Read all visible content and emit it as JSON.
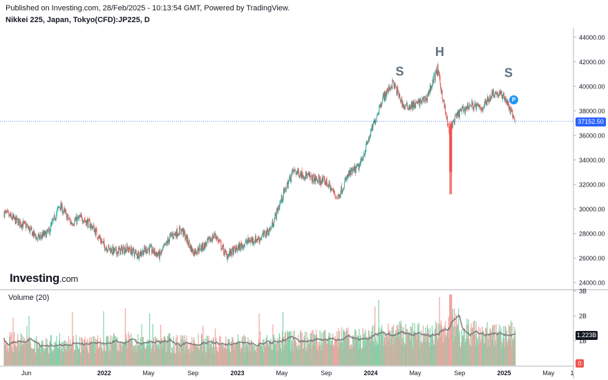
{
  "header": {
    "published": "Published on Investing.com, 28/Feb/2025 - 10:13:54 GMT, Powered by TradingView.",
    "instrument": "Nikkei 225, Japan, Tokyo(CFD):JP225, D"
  },
  "branding": {
    "logo_main": "Investing",
    "logo_suffix": ".com"
  },
  "volume_panel": {
    "title": "Volume (20)",
    "current_tag": "1.223B",
    "zero_tag": "0"
  },
  "marker": {
    "label": "P"
  },
  "colors": {
    "up": "#26a69a",
    "down": "#ef5350",
    "vol_up": "#7fd1a9",
    "vol_down": "#f2a39f",
    "price_line": "#2962ff",
    "ma_line": "#7c7c7c",
    "pattern_label": "#5d7080"
  },
  "chart_data": [
    {
      "type": "candlestick",
      "title": "Nikkei 225, Japan, Tokyo(CFD):JP225, D",
      "y_ticks": [
        "44000.00",
        "42000.00",
        "40000.00",
        "38000.00",
        "36000.00",
        "34000.00",
        "32000.00",
        "30000.00",
        "28000.00",
        "26000.00",
        "24000.00"
      ],
      "ylim": [
        23500,
        44500
      ],
      "x_ticks": [
        "Jun",
        "2022",
        "May",
        "Sep",
        "2023",
        "May",
        "Sep",
        "2024",
        "May",
        "Sep",
        "2025",
        "May",
        "1"
      ],
      "last_price": 37152.5,
      "last_price_label": "37152.50",
      "annotations": [
        {
          "text": "S",
          "date": "Mar 2024",
          "note": "left shoulder"
        },
        {
          "text": "H",
          "date": "Jul 2024",
          "note": "head"
        },
        {
          "text": "S",
          "date": "Jan 2025",
          "note": "right shoulder"
        }
      ],
      "approx_close_series": {
        "dates": [
          "Apr 2021",
          "May 2021",
          "Jun 2021",
          "Jul 2021",
          "Aug 2021",
          "Sep 2021",
          "Oct 2021",
          "Nov 2021",
          "Dec 2021",
          "Jan 2022",
          "Feb 2022",
          "Mar 2022",
          "Apr 2022",
          "May 2022",
          "Jun 2022",
          "Jul 2022",
          "Aug 2022",
          "Sep 2022",
          "Oct 2022",
          "Nov 2022",
          "Dec 2022",
          "Jan 2023",
          "Feb 2023",
          "Mar 2023",
          "Apr 2023",
          "May 2023",
          "Jun 2023",
          "Jul 2023",
          "Aug 2023",
          "Sep 2023",
          "Oct 2023",
          "Nov 2023",
          "Dec 2023",
          "Jan 2024",
          "Feb 2024",
          "Mar 2024",
          "Apr 2024",
          "May 2024",
          "Jun 2024",
          "Jul 2024",
          "Aug 2024",
          "Sep 2024",
          "Oct 2024",
          "Nov 2024",
          "Dec 2024",
          "Jan 2025",
          "Feb 2025"
        ],
        "values": [
          29700,
          29100,
          28600,
          27600,
          28100,
          30300,
          28900,
          29300,
          28500,
          27000,
          26500,
          26800,
          26300,
          26800,
          26200,
          27800,
          28300,
          26500,
          27000,
          27900,
          26200,
          26800,
          27400,
          27600,
          28400,
          30900,
          33100,
          32800,
          32400,
          32200,
          30900,
          32800,
          33500,
          36200,
          38900,
          40300,
          38300,
          38500,
          39000,
          41400,
          36500,
          37900,
          38500,
          38200,
          39500,
          39200,
          37150
        ]
      }
    },
    {
      "type": "bar",
      "title": "Volume (20)",
      "y_ticks": [
        "3B",
        "2B",
        "1B"
      ],
      "ylim": [
        0,
        3.0
      ],
      "unit": "B",
      "ma_period": 20,
      "last_value": 1.223,
      "last_value_label": "1.223B",
      "approx_monthly_avg": [
        0.95,
        0.9,
        0.85,
        0.8,
        0.85,
        0.95,
        0.9,
        0.85,
        0.85,
        0.9,
        0.9,
        0.95,
        0.9,
        0.85,
        0.9,
        0.85,
        0.85,
        0.9,
        0.85,
        0.85,
        0.9,
        0.9,
        0.85,
        0.95,
        0.9,
        1.0,
        1.05,
        1.0,
        1.0,
        1.05,
        1.1,
        1.05,
        1.05,
        1.15,
        1.2,
        1.25,
        1.2,
        1.2,
        1.25,
        1.3,
        1.7,
        1.35,
        1.3,
        1.25,
        1.2,
        1.25,
        1.3
      ]
    }
  ]
}
